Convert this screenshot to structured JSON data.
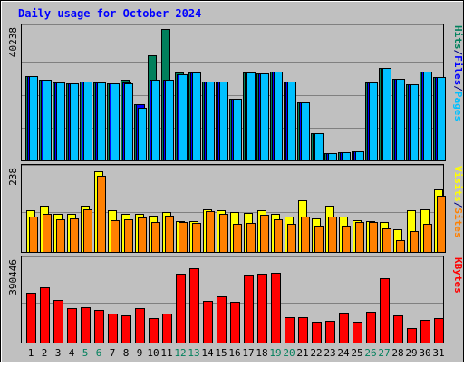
{
  "chart_data": {
    "type": "bar",
    "title": "Daily usage for October 2024",
    "x": [
      "1",
      "2",
      "3",
      "4",
      "5",
      "6",
      "7",
      "8",
      "9",
      "10",
      "11",
      "12",
      "13",
      "14",
      "15",
      "16",
      "17",
      "18",
      "19",
      "20",
      "21",
      "22",
      "23",
      "24",
      "25",
      "26",
      "27",
      "28",
      "29",
      "30",
      "31"
    ],
    "weekend_days": [
      "5",
      "6",
      "12",
      "13",
      "19",
      "20",
      "26",
      "27"
    ],
    "panels": [
      {
        "name": "hits-files-pages",
        "max_label": "40238",
        "ymax": 40238,
        "legend": [
          {
            "label": "Pages",
            "color": "#00c0ff"
          },
          {
            "label": "/",
            "color": "#00007f"
          },
          {
            "label": "Files",
            "color": "#0000ff"
          },
          {
            "label": "/",
            "color": "#00007f"
          },
          {
            "label": "Hits",
            "color": "#00805c"
          }
        ],
        "series": [
          {
            "name": "Hits",
            "color": "#00805c",
            "values": [
              25700,
              24800,
              23900,
              23600,
              24200,
              24000,
              23700,
              24600,
              17100,
              32200,
              40238,
              26800,
              26900,
              24200,
              24100,
              18800,
              26800,
              26600,
              27100,
              24200,
              17800,
              8300,
              2100,
              2500,
              2700,
              24000,
              28200,
              24900,
              23200,
              27200,
              25600
            ]
          },
          {
            "name": "Files",
            "color": "#0000ff",
            "values": [
              25700,
              24800,
              23900,
              23600,
              24200,
              24000,
              23700,
              24000,
              17100,
              24600,
              24800,
              26300,
              26900,
              24200,
              24100,
              18800,
              26800,
              26600,
              27100,
              24200,
              17800,
              8300,
              2100,
              2500,
              2700,
              24000,
              28200,
              24900,
              23200,
              27200,
              25600
            ]
          },
          {
            "name": "Pages",
            "color": "#00c0ff",
            "values": [
              25700,
              24800,
              23900,
              23600,
              24200,
              24000,
              23700,
              23600,
              16100,
              24600,
              24800,
              26300,
              26900,
              24200,
              24100,
              18800,
              26800,
              26600,
              27100,
              24200,
              17800,
              8300,
              2100,
              2500,
              2700,
              24000,
              28200,
              24900,
              23200,
              27200,
              25600
            ]
          }
        ]
      },
      {
        "name": "visits-sites",
        "max_label": "238",
        "ymax": 238,
        "legend": [
          {
            "label": "Sites",
            "color": "#ff8000"
          },
          {
            "label": "/",
            "color": "#00007f"
          },
          {
            "label": "Visits",
            "color": "#ffff00"
          }
        ],
        "series": [
          {
            "name": "Visits",
            "color": "#ffff00",
            "values": [
              124,
              136,
              112,
              112,
              137,
              238,
              124,
              112,
              113,
              106,
              117,
              91,
              90,
              127,
              123,
              117,
              116,
              124,
              111,
              103,
              153,
              99,
              137,
              105,
              93,
              91,
              88,
              67,
              122,
              126,
              185
            ]
          },
          {
            "name": "Sites",
            "color": "#ff8000",
            "values": [
              103,
              112,
              97,
              100,
              127,
              224,
              93,
              95,
              101,
              88,
              106,
              89,
              85,
              119,
              113,
              84,
              86,
              110,
              96,
              83,
              104,
              78,
              104,
              77,
              89,
              88,
              70,
              34,
              62,
              84,
              166
            ]
          }
        ]
      },
      {
        "name": "kbytes",
        "max_label": "390446",
        "ymax": 390446,
        "legend": [
          {
            "label": "KBytes",
            "color": "#ff0000"
          }
        ],
        "series": [
          {
            "name": "KBytes",
            "color": "#ff0000",
            "values": [
              245000,
              270000,
              210000,
              170000,
              175000,
              160000,
              140000,
              135000,
              170000,
              120000,
              140000,
              335000,
              364000,
              203000,
              228000,
              200000,
              330000,
              335000,
              340000,
              125000,
              125000,
              100000,
              107000,
              145000,
              100000,
              150000,
              313000,
              135000,
              72000,
              110000,
              120000
            ]
          }
        ]
      }
    ]
  }
}
